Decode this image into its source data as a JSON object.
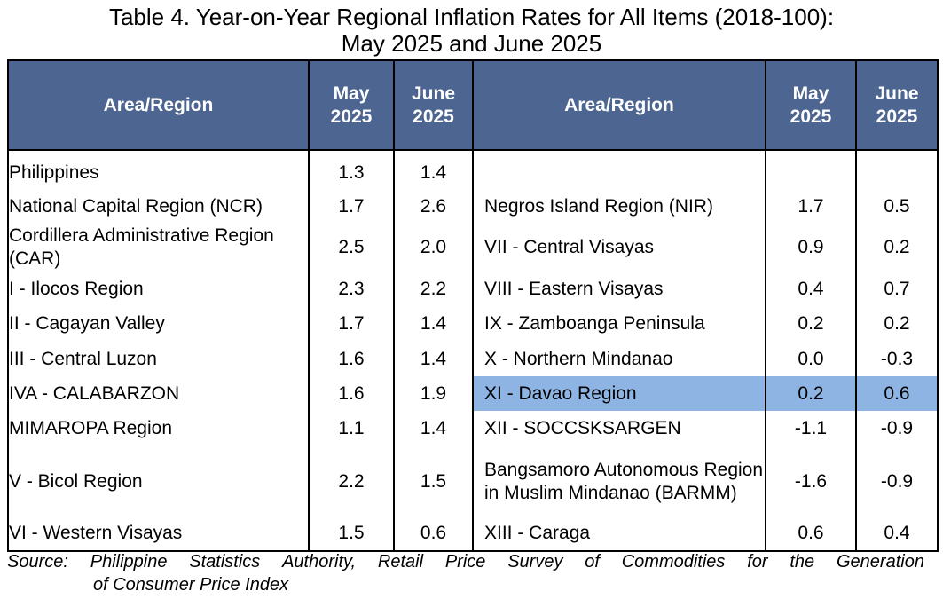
{
  "title": {
    "line1": "Table 4. Year-on-Year Regional Inflation Rates for All Items (2018-100):",
    "line2": "May 2025 and June 2025"
  },
  "header": {
    "area_region": "Area/Region",
    "may_line1": "May",
    "may_line2": "2025",
    "june_line1": "June",
    "june_line2": "2025"
  },
  "rows": [
    {
      "left": {
        "region": "Philippines",
        "may": "1.3",
        "june": "1.4"
      },
      "right": {
        "region": "",
        "may": "",
        "june": ""
      }
    },
    {
      "left": {
        "region": "National Capital Region (NCR)",
        "may": "1.7",
        "june": "2.6"
      },
      "right": {
        "region": "Negros Island Region (NIR)",
        "may": "1.7",
        "june": "0.5"
      }
    },
    {
      "left": {
        "region": "Cordillera Administrative Region (CAR)",
        "may": "2.5",
        "june": "2.0"
      },
      "right": {
        "region": "VII - Central Visayas",
        "may": "0.9",
        "june": "0.2"
      }
    },
    {
      "left": {
        "region": "I - Ilocos Region",
        "may": "2.3",
        "june": "2.2"
      },
      "right": {
        "region": "VIII - Eastern Visayas",
        "may": "0.4",
        "june": "0.7"
      }
    },
    {
      "left": {
        "region": "II - Cagayan Valley",
        "may": "1.7",
        "june": "1.4"
      },
      "right": {
        "region": "IX - Zamboanga Peninsula",
        "may": "0.2",
        "june": "0.2"
      }
    },
    {
      "left": {
        "region": "III - Central Luzon",
        "may": "1.6",
        "june": "1.4"
      },
      "right": {
        "region": "X - Northern Mindanao",
        "may": "0.0",
        "june": "-0.3"
      }
    },
    {
      "left": {
        "region": "IVA - CALABARZON",
        "may": "1.6",
        "june": "1.9"
      },
      "right": {
        "region": "XI - Davao Region",
        "may": "0.2",
        "june": "0.6",
        "highlighted": true
      }
    },
    {
      "left": {
        "region": "MIMAROPA Region",
        "may": "1.1",
        "june": "1.4"
      },
      "right": {
        "region": "XII - SOCCSKSARGEN",
        "may": "-1.1",
        "june": "-0.9"
      }
    },
    {
      "left": {
        "region": "V - Bicol Region",
        "may": "2.2",
        "june": "1.5"
      },
      "right": {
        "region": "Bangsamoro Autonomous Region in Muslim Mindanao (BARMM)",
        "may": "-1.6",
        "june": "-0.9"
      }
    },
    {
      "left": {
        "region": "VI - Western Visayas",
        "may": "1.5",
        "june": "0.6"
      },
      "right": {
        "region": "XIII - Caraga",
        "may": "0.6",
        "june": "0.4"
      }
    }
  ],
  "source": {
    "words_line1": [
      "Source:",
      "Philippine",
      "Statistics",
      "Authority,",
      "Retail",
      "Price",
      "Survey",
      "of",
      "Commodities",
      "for",
      "the",
      "Generation"
    ],
    "line2": "of Consumer Price Index"
  },
  "colors": {
    "header_bg": "#4d6591",
    "highlight_bg": "#8eb4e3"
  }
}
